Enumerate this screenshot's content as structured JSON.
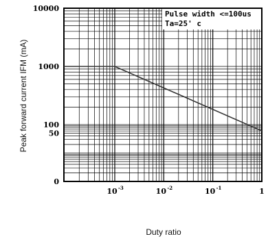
{
  "chart_data": {
    "type": "line",
    "xlabel": "Duty ratio",
    "ylabel": "Peak forward current IFM (mA)",
    "x_scale": "log",
    "y_scale": "log",
    "xlim": [
      0.0001,
      1
    ],
    "ylim": [
      1,
      10000
    ],
    "x_ticks": [
      {
        "value": 0.001,
        "base": "10",
        "exp": "-3"
      },
      {
        "value": 0.01,
        "base": "10",
        "exp": "-2"
      },
      {
        "value": 0.1,
        "base": "10",
        "exp": "-1"
      },
      {
        "value": 1,
        "base": "1",
        "exp": ""
      }
    ],
    "y_ticks": [
      {
        "value": 10000,
        "label": "10000"
      },
      {
        "value": 1000,
        "label": "1000"
      },
      {
        "value": 100,
        "label": "100"
      },
      {
        "value": 50,
        "label": "50"
      },
      {
        "value": 1,
        "label": "0"
      }
    ],
    "series": [
      {
        "x": [
          0.0001,
          0.001,
          1
        ],
        "y": [
          1000,
          1000,
          60
        ]
      }
    ],
    "annotations": [
      "Pulse width <=100us",
      "Ta=25' c"
    ],
    "grid": true
  },
  "colors": {
    "line": "#333333",
    "grid": "#000000"
  }
}
